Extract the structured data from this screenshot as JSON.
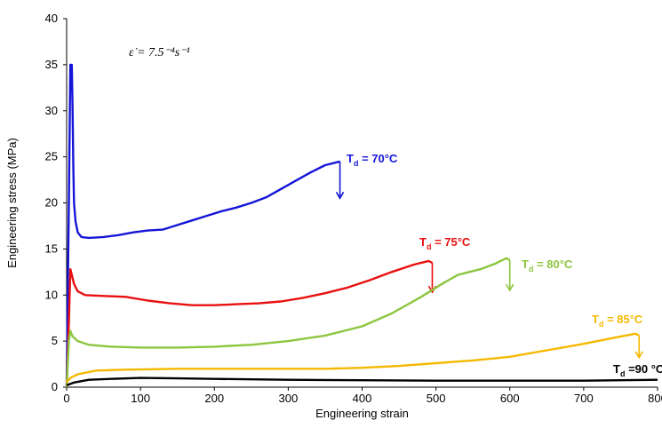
{
  "chart_data": {
    "type": "line",
    "xlabel": "Engineering strain",
    "ylabel": "Engineering stress (MPa)",
    "xlim": [
      0,
      800
    ],
    "ylim": [
      0,
      40
    ],
    "x_ticks": [
      "0",
      "100",
      "200",
      "300",
      "400",
      "500",
      "600",
      "700",
      "800"
    ],
    "y_ticks": [
      "0",
      "5",
      "10",
      "15",
      "20",
      "25",
      "30",
      "35",
      "40"
    ],
    "annotation": "ε̇ = 7.5⁻⁴s⁻¹",
    "grid": false,
    "series": [
      {
        "name": "T_d = 70°C",
        "label_main": "T",
        "label_sub": "d",
        "label_rest": " = 70°C",
        "color": "#1515d8",
        "points": [
          [
            0,
            0
          ],
          [
            3,
            20
          ],
          [
            5,
            35
          ],
          [
            7,
            35
          ],
          [
            8,
            30
          ],
          [
            9,
            24
          ],
          [
            10,
            20
          ],
          [
            12,
            18
          ],
          [
            15,
            16.8
          ],
          [
            20,
            16.3
          ],
          [
            30,
            16.2
          ],
          [
            50,
            16.3
          ],
          [
            70,
            16.5
          ],
          [
            90,
            16.8
          ],
          [
            110,
            17
          ],
          [
            130,
            17.1
          ],
          [
            150,
            17.6
          ],
          [
            170,
            18.1
          ],
          [
            190,
            18.6
          ],
          [
            210,
            19.1
          ],
          [
            230,
            19.5
          ],
          [
            250,
            20
          ],
          [
            270,
            20.6
          ],
          [
            290,
            21.5
          ],
          [
            310,
            22.4
          ],
          [
            330,
            23.3
          ],
          [
            350,
            24.1
          ],
          [
            370,
            24.5
          ]
        ],
        "arrow": [
          370,
          24.5,
          370,
          20.5
        ]
      },
      {
        "name": "T_d = 75°C",
        "label_main": "T",
        "label_sub": "d",
        "label_rest": " = 75°C",
        "color": "#e81010",
        "points": [
          [
            0,
            0
          ],
          [
            3,
            7
          ],
          [
            5,
            12.8
          ],
          [
            7,
            12.2
          ],
          [
            10,
            11.2
          ],
          [
            15,
            10.4
          ],
          [
            25,
            10
          ],
          [
            50,
            9.9
          ],
          [
            80,
            9.8
          ],
          [
            110,
            9.4
          ],
          [
            140,
            9.1
          ],
          [
            170,
            8.9
          ],
          [
            200,
            8.9
          ],
          [
            230,
            9
          ],
          [
            260,
            9.1
          ],
          [
            290,
            9.3
          ],
          [
            320,
            9.7
          ],
          [
            350,
            10.2
          ],
          [
            380,
            10.8
          ],
          [
            410,
            11.6
          ],
          [
            440,
            12.5
          ],
          [
            470,
            13.3
          ],
          [
            490,
            13.7
          ],
          [
            495,
            13.5
          ]
        ],
        "arrow": [
          495,
          13.5,
          495,
          10.3
        ]
      },
      {
        "name": "T_d = 80°C",
        "label_main": "T",
        "label_sub": "d",
        "label_rest": " = 80°C",
        "color": "#8cc63f",
        "points": [
          [
            0,
            0
          ],
          [
            3,
            5
          ],
          [
            5,
            6.1
          ],
          [
            8,
            5.5
          ],
          [
            15,
            5
          ],
          [
            30,
            4.6
          ],
          [
            60,
            4.4
          ],
          [
            100,
            4.3
          ],
          [
            150,
            4.3
          ],
          [
            200,
            4.4
          ],
          [
            250,
            4.6
          ],
          [
            300,
            5
          ],
          [
            350,
            5.6
          ],
          [
            400,
            6.6
          ],
          [
            440,
            8
          ],
          [
            480,
            9.8
          ],
          [
            510,
            11.3
          ],
          [
            530,
            12.2
          ],
          [
            560,
            12.8
          ],
          [
            580,
            13.4
          ],
          [
            595,
            14
          ],
          [
            600,
            13.8
          ]
        ],
        "arrow": [
          600,
          13.8,
          600,
          10.5
        ]
      },
      {
        "name": "T_d = 85°C",
        "label_main": "T",
        "label_sub": "d",
        "label_rest": " = 85°C",
        "color": "#f5b800",
        "points": [
          [
            0,
            0.5
          ],
          [
            5,
            1
          ],
          [
            15,
            1.4
          ],
          [
            40,
            1.8
          ],
          [
            80,
            1.9
          ],
          [
            150,
            2
          ],
          [
            250,
            2
          ],
          [
            350,
            2
          ],
          [
            400,
            2.1
          ],
          [
            450,
            2.3
          ],
          [
            500,
            2.6
          ],
          [
            550,
            2.9
          ],
          [
            600,
            3.3
          ],
          [
            650,
            4
          ],
          [
            700,
            4.7
          ],
          [
            750,
            5.5
          ],
          [
            770,
            5.8
          ],
          [
            775,
            5.6
          ]
        ],
        "arrow": [
          775,
          5.6,
          775,
          3.2
        ]
      },
      {
        "name": "T_d =90 °C",
        "label_main": "T",
        "label_sub": "d",
        "label_rest": " =90 °C",
        "color": "#000000",
        "points": [
          [
            0,
            0.2
          ],
          [
            10,
            0.5
          ],
          [
            30,
            0.8
          ],
          [
            60,
            0.9
          ],
          [
            100,
            1
          ],
          [
            150,
            0.95
          ],
          [
            200,
            0.9
          ],
          [
            300,
            0.8
          ],
          [
            400,
            0.75
          ],
          [
            500,
            0.7
          ],
          [
            600,
            0.7
          ],
          [
            700,
            0.7
          ],
          [
            800,
            0.8
          ]
        ],
        "arrow": null
      }
    ]
  }
}
